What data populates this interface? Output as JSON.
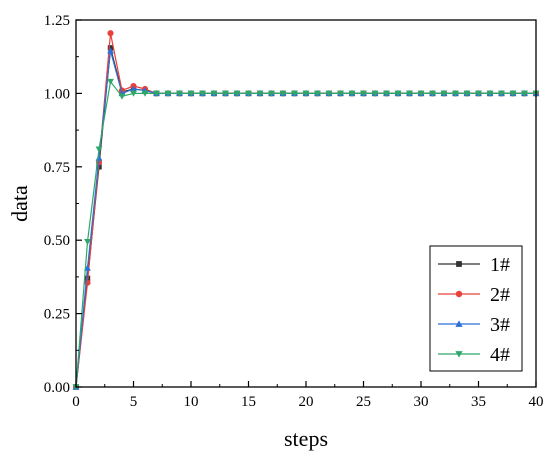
{
  "chart_data": {
    "type": "line",
    "xlabel": "steps",
    "ylabel": "data",
    "xlim": [
      0,
      40
    ],
    "ylim": [
      0,
      1.25
    ],
    "xticks": [
      "0",
      "5",
      "10",
      "15",
      "20",
      "25",
      "30",
      "35",
      "40"
    ],
    "yticks": [
      "0.00",
      "0.25",
      "0.50",
      "0.75",
      "1.00",
      "1.25"
    ],
    "grid": false,
    "legend_position": "bottom-right",
    "x": [
      0,
      1,
      2,
      3,
      4,
      5,
      6,
      7,
      8,
      9,
      10,
      11,
      12,
      13,
      14,
      15,
      16,
      17,
      18,
      19,
      20,
      21,
      22,
      23,
      24,
      25,
      26,
      27,
      28,
      29,
      30,
      31,
      32,
      33,
      34,
      35,
      36,
      37,
      38,
      39,
      40
    ],
    "series": [
      {
        "name": "1#",
        "color": "#333333",
        "marker": "square",
        "values": [
          0,
          0.37,
          0.75,
          1.155,
          1.005,
          1.015,
          1.01,
          1.0,
          1.0,
          1.0,
          1.0,
          1.0,
          1.0,
          1.0,
          1.0,
          1.0,
          1.0,
          1.0,
          1.0,
          1.0,
          1.0,
          1.0,
          1.0,
          1.0,
          1.0,
          1.0,
          1.0,
          1.0,
          1.0,
          1.0,
          1.0,
          1.0,
          1.0,
          1.0,
          1.0,
          1.0,
          1.0,
          1.0,
          1.0,
          1.0,
          1.0
        ]
      },
      {
        "name": "2#",
        "color": "#e8403a",
        "marker": "circle",
        "values": [
          0,
          0.355,
          0.765,
          1.205,
          1.01,
          1.025,
          1.015,
          1.0,
          1.0,
          1.0,
          1.0,
          1.0,
          1.0,
          1.0,
          1.0,
          1.0,
          1.0,
          1.0,
          1.0,
          1.0,
          1.0,
          1.0,
          1.0,
          1.0,
          1.0,
          1.0,
          1.0,
          1.0,
          1.0,
          1.0,
          1.0,
          1.0,
          1.0,
          1.0,
          1.0,
          1.0,
          1.0,
          1.0,
          1.0,
          1.0,
          1.0
        ]
      },
      {
        "name": "3#",
        "color": "#2c6fd6",
        "marker": "triangle-up",
        "values": [
          0,
          0.405,
          0.78,
          1.145,
          1.0,
          1.015,
          1.01,
          1.0,
          1.0,
          1.0,
          1.0,
          1.0,
          1.0,
          1.0,
          1.0,
          1.0,
          1.0,
          1.0,
          1.0,
          1.0,
          1.0,
          1.0,
          1.0,
          1.0,
          1.0,
          1.0,
          1.0,
          1.0,
          1.0,
          1.0,
          1.0,
          1.0,
          1.0,
          1.0,
          1.0,
          1.0,
          1.0,
          1.0,
          1.0,
          1.0,
          1.0
        ]
      },
      {
        "name": "4#",
        "color": "#2ea86a",
        "marker": "triangle-down",
        "values": [
          0,
          0.495,
          0.81,
          1.04,
          0.99,
          1.0,
          1.0,
          1.0,
          1.0,
          1.0,
          1.0,
          1.0,
          1.0,
          1.0,
          1.0,
          1.0,
          1.0,
          1.0,
          1.0,
          1.0,
          1.0,
          1.0,
          1.0,
          1.0,
          1.0,
          1.0,
          1.0,
          1.0,
          1.0,
          1.0,
          1.0,
          1.0,
          1.0,
          1.0,
          1.0,
          1.0,
          1.0,
          1.0,
          1.0,
          1.0,
          1.0
        ]
      }
    ]
  }
}
